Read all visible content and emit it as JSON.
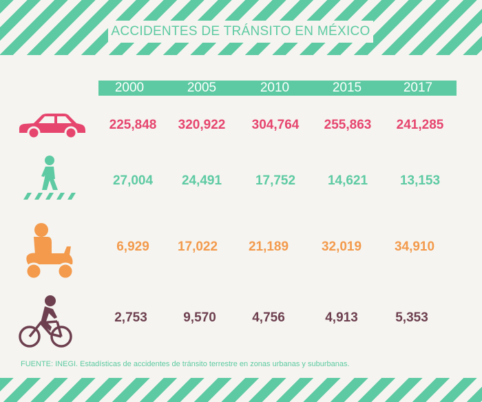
{
  "title": "ACCIDENTES DE TRÁNSITO EN MÉXICO",
  "years": [
    "2000",
    "2005",
    "2010",
    "2015",
    "2017"
  ],
  "colors": {
    "accent": "#5dcaa3",
    "car": "#e6456e",
    "pedestrian": "#5dcaa3",
    "motorcycle": "#f39a4c",
    "bicycle": "#6d3f4f",
    "background": "#f5f4f0"
  },
  "rows": [
    {
      "icon": "car-icon",
      "values": [
        "225,848",
        "320,922",
        "304,764",
        "255,863",
        "241,285"
      ]
    },
    {
      "icon": "pedestrian-icon",
      "values": [
        "27,004",
        "24,491",
        "17,752",
        "14,621",
        "13,153"
      ]
    },
    {
      "icon": "motorcycle-icon",
      "values": [
        "6,929",
        "17,022",
        "21,189",
        "32,019",
        "34,910"
      ]
    },
    {
      "icon": "bicycle-icon",
      "values": [
        "2,753",
        "9,570",
        "4,756",
        "4,913",
        "5,353"
      ]
    }
  ],
  "source": "FUENTE: INEGI. Estadísticas de accidentes de tránsito terrestre en zonas urbanas y suburbanas."
}
